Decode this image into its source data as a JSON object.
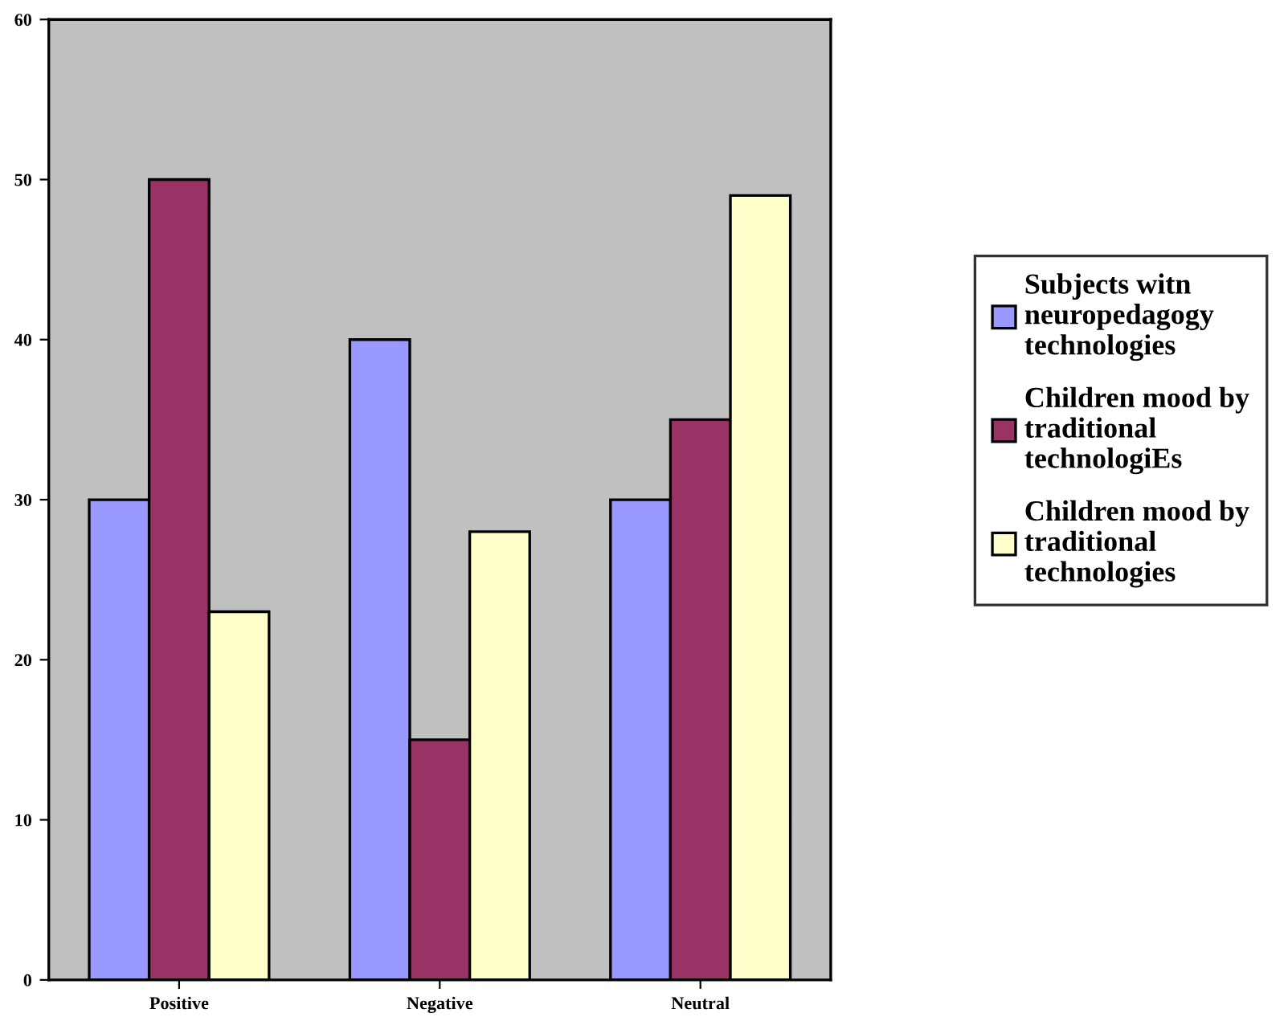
{
  "chart_data": {
    "type": "bar",
    "categories": [
      "Positive",
      "Negative",
      "Neutral"
    ],
    "series": [
      {
        "name": "Subjects witn\nneuropedagogy\ntechnologies",
        "color": "#9999ff",
        "values": [
          30,
          40,
          30
        ]
      },
      {
        "name": "Children mood by\ntraditional\ntechnologiEs",
        "color": "#993366",
        "values": [
          50,
          15,
          35
        ]
      },
      {
        "name": "Children mood by\ntraditional\ntechnologies",
        "color": "#ffffcc",
        "values": [
          23,
          28,
          49
        ]
      }
    ],
    "ylim": [
      0,
      60
    ],
    "yticks": [
      0,
      10,
      20,
      30,
      40,
      50,
      60
    ],
    "grid": false,
    "legend": "right"
  }
}
